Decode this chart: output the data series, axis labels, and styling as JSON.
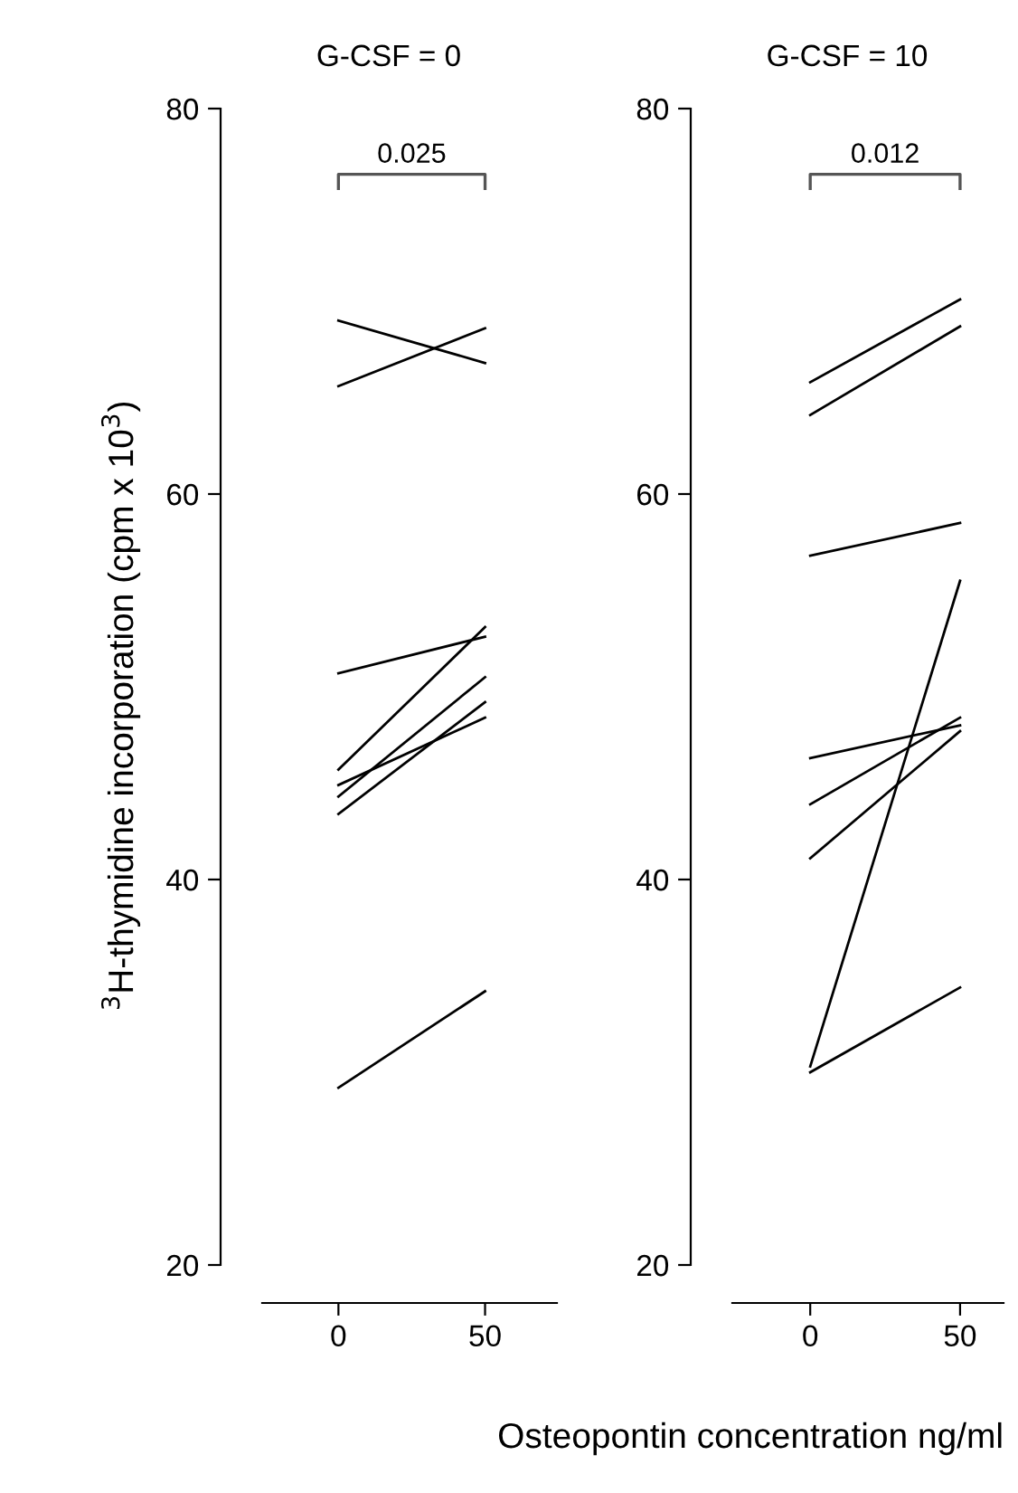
{
  "chart_data": [
    {
      "type": "line",
      "title": "G-CSF = 0",
      "ylabel": "$^{3}$H-thymidine incorporation (cpm x 10$^{3}$)",
      "categories": [
        "0",
        "50"
      ],
      "ylim": [
        20,
        80
      ],
      "yticks": [
        20,
        40,
        60,
        80
      ],
      "grid": false,
      "marker": "none",
      "line_style": "solid",
      "annotations": [
        "0.025"
      ],
      "series": [
        {
          "color": "#000000",
          "values": [
            69.0,
            66.8
          ]
        },
        {
          "color": "#000000",
          "values": [
            65.6,
            68.6
          ]
        },
        {
          "color": "#000000",
          "values": [
            50.7,
            52.6
          ]
        },
        {
          "color": "#000000",
          "values": [
            45.7,
            53.1
          ]
        },
        {
          "color": "#000000",
          "values": [
            44.9,
            48.4
          ]
        },
        {
          "color": "#000000",
          "values": [
            44.3,
            50.5
          ]
        },
        {
          "color": "#000000",
          "values": [
            43.4,
            49.2
          ]
        },
        {
          "color": "#000000",
          "values": [
            29.2,
            34.2
          ]
        }
      ]
    },
    {
      "type": "line",
      "title": "G-CSF = 10",
      "xlabel": "Osteopontin concentration ng/ml",
      "categories": [
        "0",
        "50"
      ],
      "ylim": [
        20,
        80
      ],
      "yticks": [
        20,
        40,
        60,
        80
      ],
      "grid": false,
      "marker": "none",
      "line_style": "solid",
      "annotations": [
        "0.012"
      ],
      "series": [
        {
          "color": "#000000",
          "values": [
            65.8,
            70.1
          ]
        },
        {
          "color": "#000000",
          "values": [
            64.1,
            68.7
          ]
        },
        {
          "color": "#000000",
          "values": [
            56.8,
            58.5
          ]
        },
        {
          "color": "#000000",
          "values": [
            30.3,
            55.5
          ]
        },
        {
          "color": "#000000",
          "values": [
            46.3,
            48.0
          ]
        },
        {
          "color": "#000000",
          "values": [
            43.9,
            48.4
          ]
        },
        {
          "color": "#000000",
          "values": [
            41.1,
            47.7
          ]
        },
        {
          "color": "#000000",
          "values": [
            30.0,
            34.4
          ]
        }
      ]
    }
  ]
}
